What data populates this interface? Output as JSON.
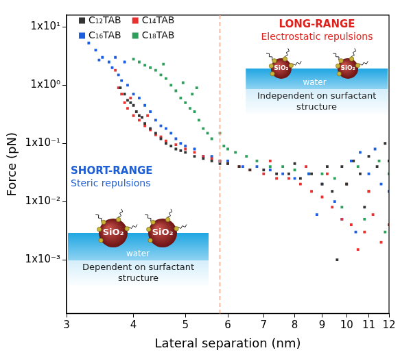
{
  "chart_data": {
    "type": "scatter",
    "x_label": "Lateral separation (nm)",
    "y_label": "Force (pN)",
    "log": true,
    "grid": false,
    "legend": "upper left",
    "marker": "square",
    "xlim": [
      3,
      12
    ],
    "xticks": [
      3,
      4,
      5,
      6,
      7,
      8,
      9,
      10,
      11,
      12
    ],
    "ylim": [
      0.00012,
      16
    ],
    "yticks": [
      {
        "value": 0.001,
        "label": "1x10⁻³"
      },
      {
        "value": 0.01,
        "label": "1x10⁻²"
      },
      {
        "value": 0.1,
        "label": "1x10⁻¹"
      },
      {
        "value": 1,
        "label": "1x10⁰"
      },
      {
        "value": 10,
        "label": "1x10¹"
      }
    ],
    "divider_x": 5.8,
    "insets": [
      {
        "heading": "LONG-RANGE",
        "subheading": "Electrostatic repulsions",
        "color": "#e0201b",
        "medium": "water",
        "particle": "SiO₂",
        "caption": "Independent on surfactant structure"
      },
      {
        "heading": "SHORT-RANGE",
        "subheading": "Steric repulsions",
        "color": "#1f5fd6",
        "medium": "water",
        "particle": "SiO₂",
        "caption": "Dependent on surfactant structure"
      }
    ],
    "series": [
      {
        "name": "C₁₂TAB",
        "color": "#333333",
        "x": [
          3.78,
          3.85,
          3.9,
          3.95,
          4.0,
          4.05,
          4.1,
          4.15,
          4.2,
          4.3,
          4.4,
          4.5,
          4.6,
          4.7,
          4.8,
          4.9,
          5.0,
          5.2,
          5.4,
          5.6,
          5.8,
          6.0,
          6.3,
          6.6,
          7.0,
          7.4,
          7.8,
          8.0,
          8.2,
          8.6,
          9.0,
          9.2,
          9.4,
          9.6,
          9.8,
          10.0,
          10.3,
          10.6,
          10.8,
          11.0,
          11.4,
          11.8,
          12.0
        ],
        "values": [
          0.9,
          0.7,
          0.55,
          0.5,
          0.45,
          0.35,
          0.3,
          0.28,
          0.22,
          0.18,
          0.15,
          0.12,
          0.1,
          0.09,
          0.08,
          0.075,
          0.07,
          0.06,
          0.055,
          0.05,
          0.045,
          0.045,
          0.04,
          0.035,
          0.035,
          0.03,
          0.03,
          0.045,
          0.025,
          0.03,
          0.02,
          0.04,
          0.015,
          0.001,
          0.04,
          0.02,
          0.05,
          0.03,
          0.008,
          0.06,
          0.04,
          0.1,
          0.05
        ]
      },
      {
        "name": "C₁₄TAB",
        "color": "#e8312f",
        "x": [
          3.7,
          3.75,
          3.8,
          3.85,
          3.9,
          3.95,
          4.0,
          4.1,
          4.2,
          4.25,
          4.3,
          4.4,
          4.5,
          4.6,
          4.8,
          5.0,
          5.2,
          5.4,
          5.6,
          5.8,
          6.0,
          6.3,
          6.6,
          7.0,
          7.2,
          7.4,
          7.8,
          8.2,
          8.4,
          8.6,
          9.0,
          9.2,
          9.4,
          9.8,
          10.0,
          10.2,
          10.5,
          10.8,
          11.0,
          11.2,
          11.6,
          12.0
        ],
        "values": [
          1.8,
          0.9,
          0.7,
          0.5,
          0.4,
          0.6,
          0.3,
          0.25,
          0.2,
          0.3,
          0.17,
          0.14,
          0.13,
          0.11,
          0.095,
          0.08,
          0.07,
          0.06,
          0.055,
          0.05,
          0.045,
          0.04,
          0.035,
          0.03,
          0.05,
          0.025,
          0.025,
          0.02,
          0.04,
          0.015,
          0.012,
          0.03,
          0.008,
          0.005,
          0.02,
          0.004,
          0.0015,
          0.003,
          0.015,
          0.006,
          0.002,
          0.004
        ]
      },
      {
        "name": "C₁₆TAB",
        "color": "#1c5ee0",
        "x": [
          3.3,
          3.4,
          3.45,
          3.5,
          3.6,
          3.65,
          3.7,
          3.75,
          3.8,
          3.85,
          3.9,
          4.0,
          4.1,
          4.2,
          4.3,
          4.4,
          4.5,
          4.6,
          4.7,
          4.8,
          4.9,
          5.0,
          5.2,
          5.4,
          5.6,
          5.8,
          6.0,
          6.4,
          6.8,
          7.2,
          7.6,
          8.0,
          8.5,
          8.8,
          9.0,
          9.5,
          9.8,
          10.2,
          10.4,
          10.6,
          11.0,
          11.3,
          11.6,
          12.0
        ],
        "values": [
          5.3,
          4,
          2.7,
          3,
          2.5,
          2,
          3,
          1.5,
          1.2,
          2.5,
          1,
          0.7,
          0.6,
          0.45,
          0.35,
          0.25,
          0.2,
          0.18,
          0.15,
          0.12,
          0.1,
          0.09,
          0.08,
          0.06,
          0.06,
          0.05,
          0.05,
          0.04,
          0.04,
          0.035,
          0.03,
          0.025,
          0.03,
          0.006,
          0.02,
          0.01,
          0.005,
          0.05,
          0.003,
          0.07,
          0.03,
          0.08,
          0.02,
          0.015
        ]
      },
      {
        "name": "C₁₈TAB",
        "color": "#2ca05a",
        "x": [
          4.0,
          4.1,
          4.2,
          4.3,
          4.4,
          4.5,
          4.55,
          4.6,
          4.7,
          4.8,
          4.9,
          4.95,
          5.0,
          5.1,
          5.15,
          5.2,
          5.25,
          5.3,
          5.4,
          5.5,
          5.6,
          5.8,
          5.9,
          6.0,
          6.2,
          6.5,
          6.8,
          7.2,
          7.6,
          8.0,
          8.5,
          9.0,
          9.5,
          9.8,
          10.0,
          10.5,
          10.8,
          11.0,
          11.5,
          11.8,
          12.0
        ],
        "values": [
          2.8,
          2.5,
          2.2,
          2,
          1.8,
          1.5,
          2.3,
          1.3,
          1,
          0.8,
          0.6,
          1.1,
          0.5,
          0.4,
          0.7,
          0.35,
          0.9,
          0.25,
          0.18,
          0.15,
          0.12,
          0.15,
          0.09,
          0.08,
          0.07,
          0.06,
          0.05,
          0.04,
          0.04,
          0.035,
          0.03,
          0.03,
          0.025,
          0.008,
          0.02,
          0.04,
          0.005,
          0.015,
          0.05,
          0.003,
          0.03
        ]
      }
    ]
  }
}
